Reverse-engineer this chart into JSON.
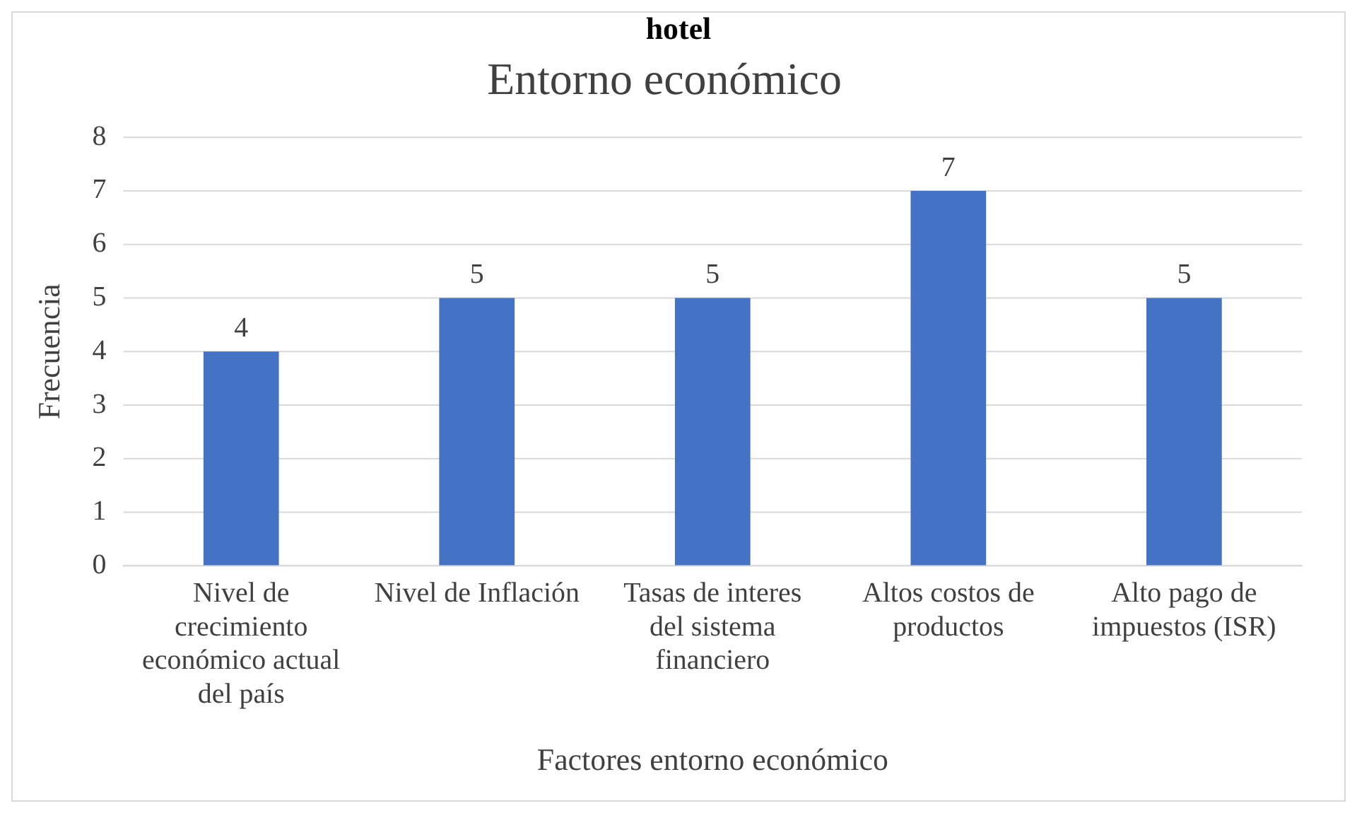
{
  "chart_data": {
    "type": "bar",
    "title": "Entorno económico",
    "xlabel": "Factores entorno económico",
    "ylabel": "Frecuencia",
    "annotations": [
      "hotel"
    ],
    "categories": [
      "Nivel de crecimiento económico actual del país",
      "Nivel de Inflación",
      "Tasas de interes del sistema financiero",
      "Altos costos de productos",
      "Alto pago de impuestos (ISR)"
    ],
    "values": [
      4,
      5,
      5,
      7,
      5
    ],
    "color": "#4472c4",
    "ylim": [
      0,
      8
    ],
    "yticks": [
      0,
      1,
      2,
      3,
      4,
      5,
      6,
      7,
      8
    ],
    "grid": "y",
    "data_labels": true,
    "legend": false
  }
}
